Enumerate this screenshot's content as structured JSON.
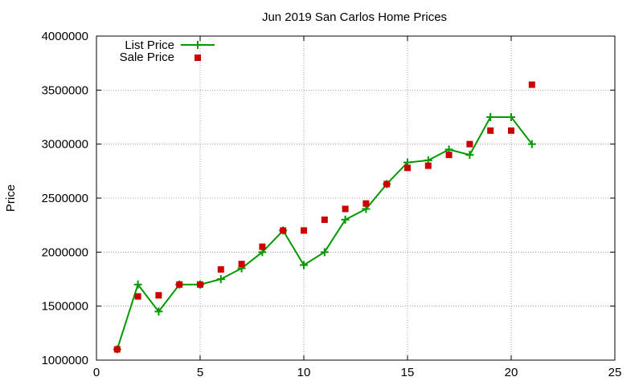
{
  "chart_data": {
    "type": "line",
    "title": "Jun 2019 San Carlos Home Prices",
    "xlabel": "",
    "ylabel": "Price",
    "xlim": [
      0,
      25
    ],
    "ylim": [
      1000000,
      4000000
    ],
    "x_ticks": [
      0,
      5,
      10,
      15,
      20,
      25
    ],
    "y_ticks": [
      1000000,
      1500000,
      2000000,
      2500000,
      3000000,
      3500000,
      4000000
    ],
    "grid": true,
    "legend_position": "top-left",
    "series": [
      {
        "name": "List Price",
        "style": "line+cross",
        "color": "#009900",
        "x": [
          1,
          2,
          3,
          4,
          5,
          6,
          7,
          8,
          9,
          10,
          11,
          12,
          13,
          14,
          15,
          16,
          17,
          18,
          19,
          20,
          21
        ],
        "y": [
          1100000,
          1700000,
          1450000,
          1700000,
          1700000,
          1750000,
          1850000,
          2000000,
          2200000,
          1880000,
          2000000,
          2300000,
          2400000,
          2630000,
          2830000,
          2850000,
          2950000,
          2900000,
          3250000,
          3250000,
          3000000
        ]
      },
      {
        "name": "Sale Price",
        "style": "square",
        "color": "#cc0000",
        "x": [
          1,
          2,
          3,
          4,
          5,
          6,
          7,
          8,
          9,
          10,
          11,
          12,
          13,
          14,
          15,
          16,
          17,
          18,
          19,
          20,
          21
        ],
        "y": [
          1100000,
          1590000,
          1600000,
          1700000,
          1700000,
          1840000,
          1890000,
          2050000,
          2200000,
          2200000,
          2300000,
          2400000,
          2450000,
          2630000,
          2780000,
          2800000,
          2900000,
          3000000,
          3125000,
          3125000,
          3550000
        ]
      }
    ]
  }
}
